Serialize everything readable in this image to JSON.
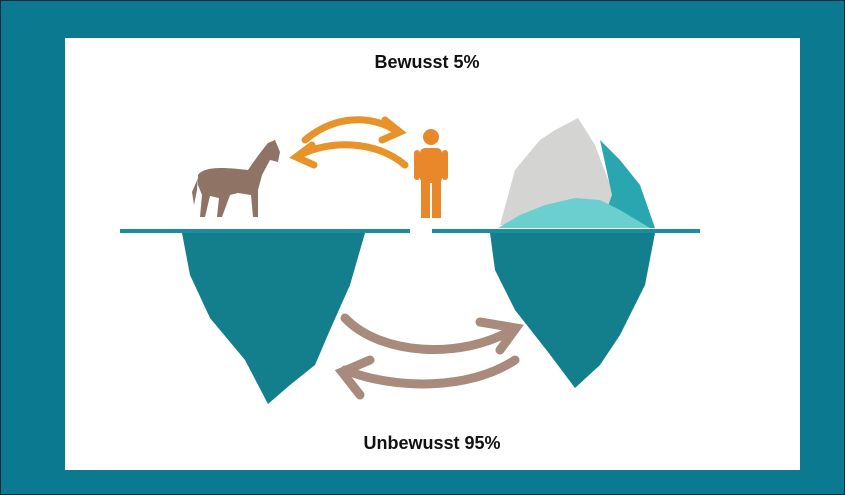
{
  "labels": {
    "top": "Bewusst 5%",
    "bottom": "Unbewusst 95%"
  }
}
